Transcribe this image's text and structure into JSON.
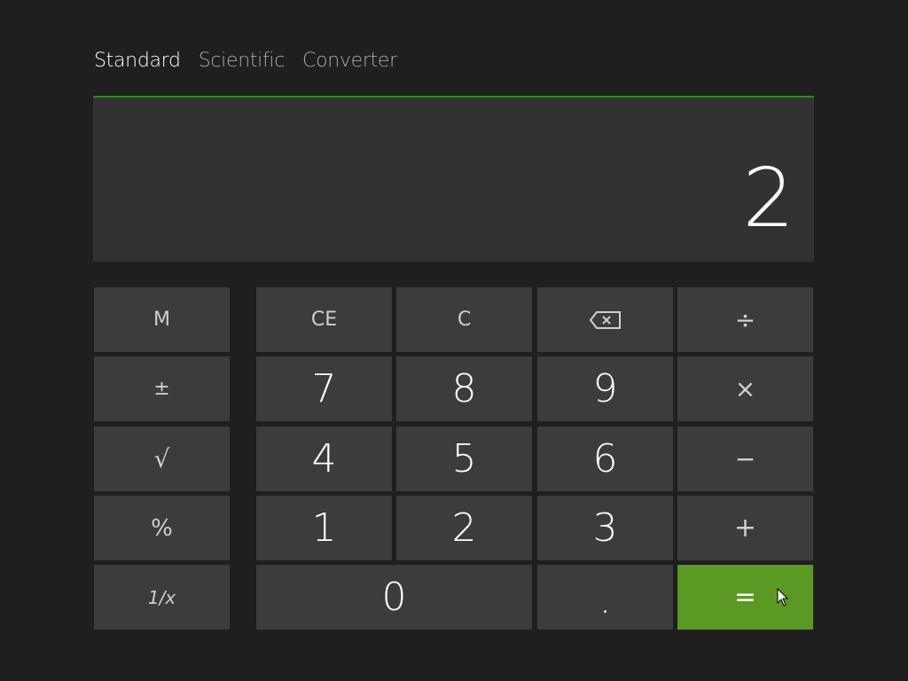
{
  "tabs": [
    {
      "label": "Standard",
      "active": true
    },
    {
      "label": "Scientific",
      "active": false
    },
    {
      "label": "Converter",
      "active": false
    }
  ],
  "display": {
    "value": "2"
  },
  "colors": {
    "accent": "#2f8a1c",
    "equals": "#5b9a22",
    "button": "#3c3c3c",
    "display": "#323232",
    "background": "#1f1f1f"
  },
  "buttons": {
    "memory": "M",
    "negate": "±",
    "sqrt": "√",
    "percent": "%",
    "reciprocal": "1/x",
    "ce": "CE",
    "c": "C",
    "backspace_icon": "backspace-icon",
    "divide": "÷",
    "multiply": "×",
    "subtract": "−",
    "add": "+",
    "equals": "=",
    "decimal": ".",
    "digits": [
      "0",
      "1",
      "2",
      "3",
      "4",
      "5",
      "6",
      "7",
      "8",
      "9"
    ]
  }
}
